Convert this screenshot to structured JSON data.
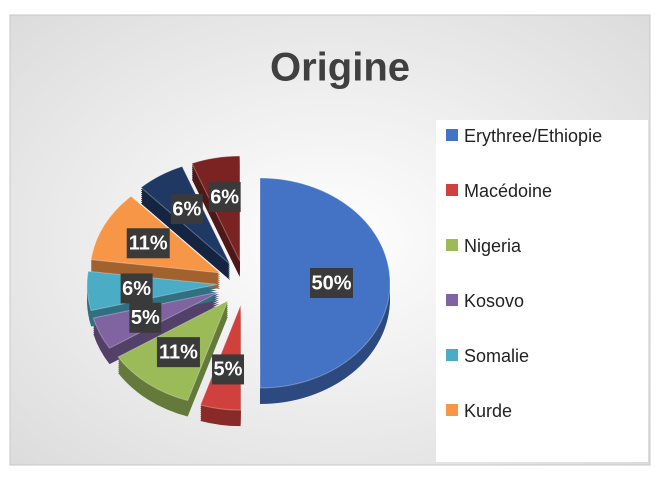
{
  "chart_data": {
    "type": "pie",
    "title": "Origine",
    "categories": [
      "Erythree/Ethiopie",
      "Macédoine",
      "Nigeria",
      "Kosovo",
      "Somalie",
      "Kurde",
      null,
      null
    ],
    "values": [
      50,
      5,
      11,
      5,
      6,
      11,
      6,
      6
    ],
    "value_labels": [
      "50%",
      "5%",
      "11%",
      "5%",
      "6%",
      "11%",
      "6%",
      "6%"
    ],
    "colors": [
      "#4472c4",
      "#d0413d",
      "#9bbb59",
      "#8064a2",
      "#4bacc6",
      "#f79646",
      "#1f3864",
      "#7b2323"
    ],
    "legend": "right"
  }
}
